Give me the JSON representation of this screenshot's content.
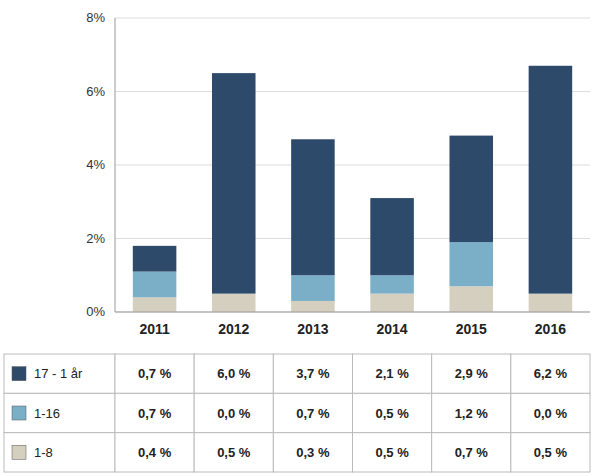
{
  "chart_data": {
    "type": "bar",
    "stacked": true,
    "grid": true,
    "categories": [
      "2011",
      "2012",
      "2013",
      "2014",
      "2015",
      "2016"
    ],
    "series": [
      {
        "name": "17 - 1 år",
        "color": "#2E4A6B",
        "values": [
          0.007,
          0.06,
          0.037,
          0.021,
          0.029,
          0.062
        ],
        "value_labels": [
          "0,7 %",
          "6,0 %",
          "3,7 %",
          "2,1 %",
          "2,9 %",
          "6,2 %"
        ]
      },
      {
        "name": "1-16",
        "color": "#7BAFC8",
        "values": [
          0.007,
          0.0,
          0.007,
          0.005,
          0.012,
          0.0
        ],
        "value_labels": [
          "0,7 %",
          "0,0 %",
          "0,7 %",
          "0,5 %",
          "1,2 %",
          "0,0 %"
        ]
      },
      {
        "name": "1-8",
        "color": "#D5CFBF",
        "values": [
          0.004,
          0.005,
          0.003,
          0.005,
          0.007,
          0.005
        ],
        "value_labels": [
          "0,4 %",
          "0,5 %",
          "0,3 %",
          "0,5 %",
          "0,7 %",
          "0,5 %"
        ]
      }
    ],
    "ylim": [
      0,
      0.08
    ],
    "yticks": [
      {
        "value": 0.0,
        "label": "0%"
      },
      {
        "value": 0.02,
        "label": "2%"
      },
      {
        "value": 0.04,
        "label": "4%"
      },
      {
        "value": 0.06,
        "label": "6%"
      },
      {
        "value": 0.08,
        "label": "8%"
      }
    ]
  }
}
